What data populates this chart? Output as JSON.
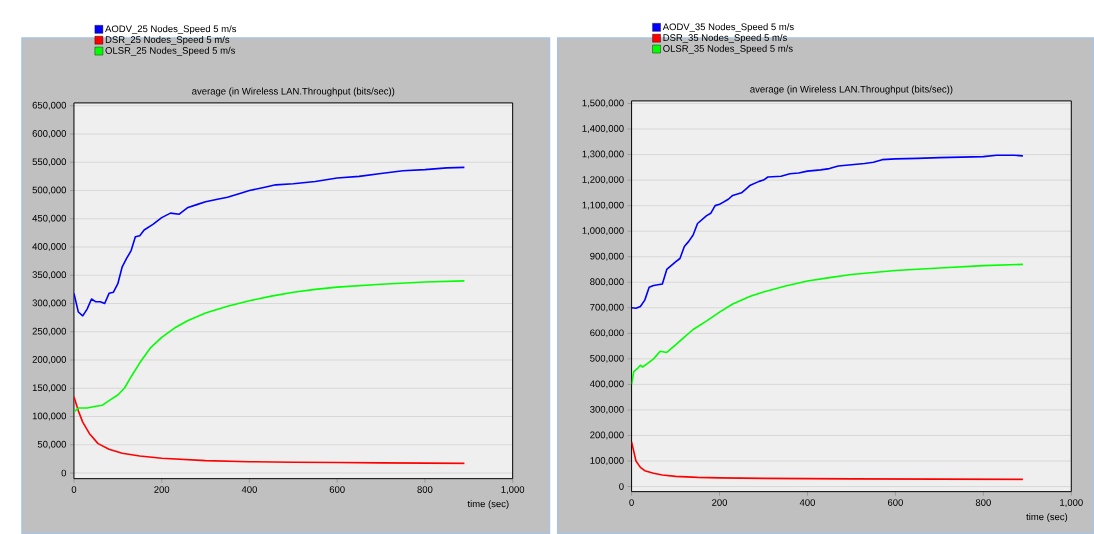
{
  "chart_data": [
    {
      "type": "line",
      "title": "average (in Wireless LAN.Throughput (bits/sec))",
      "xlabel": "time (sec)",
      "xlim": [
        0,
        1000
      ],
      "ylim": [
        -10000,
        655000
      ],
      "xticks": [
        0,
        200,
        400,
        600,
        800,
        {
          "value": 1000,
          "label": "1,000"
        }
      ],
      "yticks": [
        0,
        {
          "value": 50000,
          "label": "50,000"
        },
        {
          "value": 100000,
          "label": "100,000"
        },
        {
          "value": 150000,
          "label": "150,000"
        },
        {
          "value": 200000,
          "label": "200,000"
        },
        {
          "value": 250000,
          "label": "250,000"
        },
        {
          "value": 300000,
          "label": "300,000"
        },
        {
          "value": 350000,
          "label": "350,000"
        },
        {
          "value": 400000,
          "label": "400,000"
        },
        {
          "value": 450000,
          "label": "450,000"
        },
        {
          "value": 500000,
          "label": "500,000"
        },
        {
          "value": 550000,
          "label": "550,000"
        },
        {
          "value": 600000,
          "label": "600,000"
        },
        {
          "value": 650000,
          "label": "650,000"
        }
      ],
      "grid": "y",
      "legend": "top left",
      "marker": "none",
      "line_style": "solid",
      "series": [
        {
          "name": "AODV_25 Nodes_Speed 5 m/s",
          "color": "#0000ff",
          "x": [
            0,
            10,
            20,
            30,
            40,
            50,
            60,
            70,
            80,
            90,
            100,
            110,
            120,
            130,
            140,
            150,
            160,
            180,
            200,
            220,
            240,
            260,
            280,
            300,
            330,
            350,
            380,
            400,
            430,
            460,
            500,
            550,
            600,
            650,
            700,
            750,
            800,
            850,
            890
          ],
          "values": [
            318000,
            285000,
            278000,
            290000,
            308000,
            303000,
            303000,
            300000,
            318000,
            320000,
            335000,
            365000,
            380000,
            393000,
            418000,
            420000,
            430000,
            440000,
            452000,
            460000,
            458000,
            470000,
            475000,
            480000,
            485000,
            488000,
            495000,
            500000,
            505000,
            510000,
            512000,
            516000,
            522000,
            525000,
            530000,
            535000,
            537000,
            540000,
            541000
          ]
        },
        {
          "name": "DSR_25 Nodes_Speed 5 m/s",
          "color": "#ff0000",
          "x": [
            0,
            10,
            20,
            35,
            55,
            80,
            110,
            150,
            200,
            300,
            400,
            500,
            600,
            700,
            800,
            890
          ],
          "values": [
            135000,
            110000,
            90000,
            70000,
            52000,
            42000,
            35000,
            30000,
            26000,
            22000,
            20000,
            19000,
            18500,
            18000,
            17500,
            17000
          ]
        },
        {
          "name": "OLSR_25 Nodes_Speed 5 m/s",
          "color": "#00ff00",
          "x": [
            0,
            10,
            30,
            50,
            65,
            80,
            100,
            115,
            130,
            150,
            175,
            200,
            230,
            260,
            300,
            350,
            400,
            450,
            500,
            550,
            600,
            700,
            800,
            890
          ],
          "values": [
            108000,
            115000,
            115000,
            118000,
            120000,
            128000,
            138000,
            150000,
            170000,
            195000,
            222000,
            240000,
            257000,
            270000,
            283000,
            295000,
            305000,
            313000,
            320000,
            325000,
            329000,
            334000,
            338000,
            340000
          ]
        }
      ]
    },
    {
      "type": "line",
      "title": "average (in Wireless LAN.Throughput (bits/sec))",
      "xlabel": "time (sec)",
      "xlim": [
        0,
        1000
      ],
      "ylim": [
        -20000,
        1510000
      ],
      "xticks": [
        0,
        200,
        400,
        600,
        800,
        {
          "value": 1000,
          "label": "1,000"
        }
      ],
      "yticks": [
        0,
        {
          "value": 100000,
          "label": "100,000"
        },
        {
          "value": 200000,
          "label": "200,000"
        },
        {
          "value": 300000,
          "label": "300,000"
        },
        {
          "value": 400000,
          "label": "400,000"
        },
        {
          "value": 500000,
          "label": "500,000"
        },
        {
          "value": 600000,
          "label": "600,000"
        },
        {
          "value": 700000,
          "label": "700,000"
        },
        {
          "value": 800000,
          "label": "800,000"
        },
        {
          "value": 900000,
          "label": "900,000"
        },
        {
          "value": 1000000,
          "label": "1,000,000"
        },
        {
          "value": 1100000,
          "label": "1,100,000"
        },
        {
          "value": 1200000,
          "label": "1,200,000"
        },
        {
          "value": 1300000,
          "label": "1,300,000"
        },
        {
          "value": 1400000,
          "label": "1,400,000"
        },
        {
          "value": 1500000,
          "label": "1,500,000"
        }
      ],
      "grid": "y",
      "legend": "top left",
      "marker": "none",
      "line_style": "solid",
      "series": [
        {
          "name": "AODV_35 Nodes_Speed 5 m/s",
          "color": "#0000ff",
          "x": [
            0,
            10,
            20,
            30,
            40,
            50,
            70,
            80,
            100,
            110,
            120,
            130,
            140,
            150,
            170,
            180,
            190,
            200,
            220,
            230,
            250,
            260,
            270,
            290,
            300,
            310,
            340,
            360,
            380,
            400,
            430,
            450,
            470,
            500,
            530,
            550,
            570,
            600,
            650,
            700,
            750,
            800,
            830,
            870,
            890
          ],
          "values": [
            700000,
            698000,
            705000,
            730000,
            780000,
            787000,
            793000,
            850000,
            880000,
            893000,
            940000,
            960000,
            985000,
            1030000,
            1060000,
            1070000,
            1100000,
            1105000,
            1125000,
            1140000,
            1150000,
            1165000,
            1180000,
            1195000,
            1200000,
            1212000,
            1215000,
            1225000,
            1228000,
            1235000,
            1240000,
            1245000,
            1255000,
            1260000,
            1265000,
            1270000,
            1280000,
            1283000,
            1285000,
            1288000,
            1290000,
            1292000,
            1297000,
            1297000,
            1295000
          ]
        },
        {
          "name": "DSR_35 Nodes_Speed 5 m/s",
          "color": "#ff0000",
          "x": [
            0,
            10,
            20,
            30,
            50,
            70,
            100,
            150,
            200,
            300,
            500,
            700,
            890
          ],
          "values": [
            175000,
            100000,
            75000,
            62000,
            52000,
            45000,
            40000,
            36000,
            34000,
            32000,
            30000,
            29000,
            28000
          ]
        },
        {
          "name": "OLSR_35 Nodes_Speed 5 m/s",
          "color": "#00ff00",
          "x": [
            0,
            5,
            15,
            20,
            25,
            35,
            50,
            65,
            80,
            100,
            120,
            140,
            170,
            200,
            230,
            270,
            300,
            350,
            400,
            450,
            500,
            600,
            700,
            800,
            890
          ],
          "values": [
            400000,
            450000,
            465000,
            475000,
            468000,
            480000,
            500000,
            530000,
            525000,
            555000,
            585000,
            615000,
            648000,
            683000,
            715000,
            745000,
            762000,
            785000,
            805000,
            818000,
            830000,
            846000,
            856000,
            865000,
            870000
          ]
        }
      ]
    }
  ]
}
